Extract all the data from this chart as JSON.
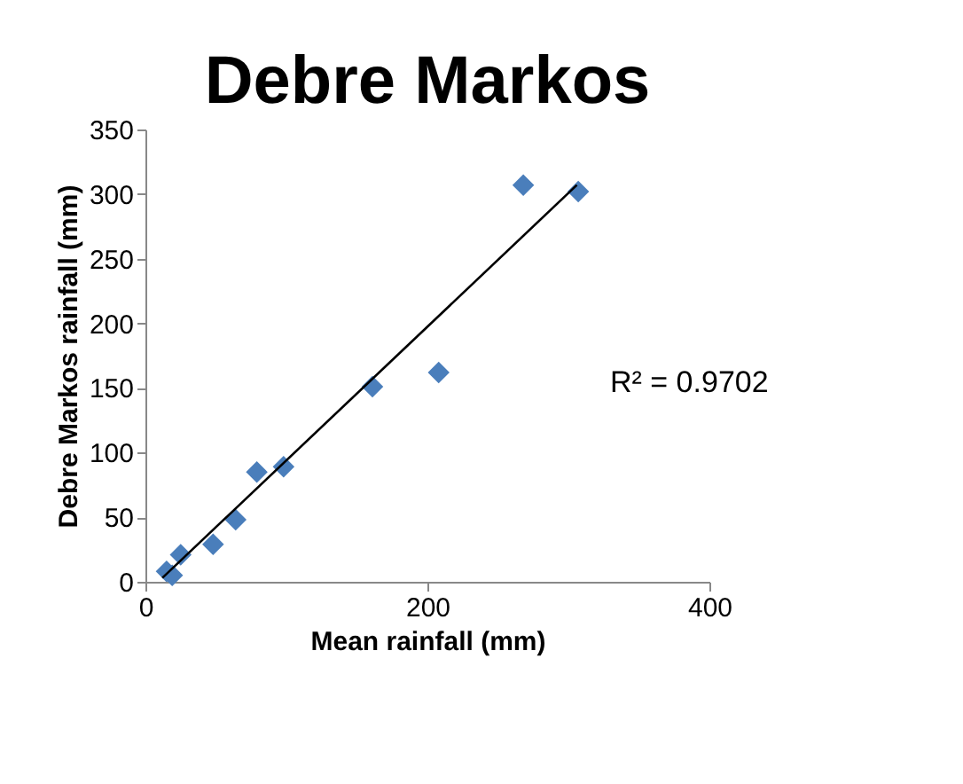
{
  "chart_data": {
    "type": "scatter",
    "title": "Debre Markos",
    "xlabel": "Mean rainfall (mm)",
    "ylabel": "Debre Markos rainfall (mm)",
    "xlim": [
      0,
      400
    ],
    "xticks": [
      0,
      200,
      400
    ],
    "ylim": [
      0,
      350
    ],
    "yticks": [
      0,
      50,
      100,
      150,
      200,
      250,
      300,
      350
    ],
    "grid": false,
    "series": [
      {
        "color": "#4a7ebb",
        "marker": "diamond",
        "x": [
          15,
          19,
          25,
          48,
          64,
          79,
          98,
          161,
          208,
          268,
          307
        ],
        "values": [
          8,
          5,
          21,
          29,
          48,
          85,
          89,
          151,
          162,
          307,
          302
        ]
      },
      {
        "type": "line",
        "color": "#000000",
        "line_style": "solid",
        "marker": "none",
        "x": [
          12,
          306
        ],
        "values": [
          3,
          307
        ]
      }
    ],
    "annotations": [
      "R² = 0.9702"
    ]
  }
}
